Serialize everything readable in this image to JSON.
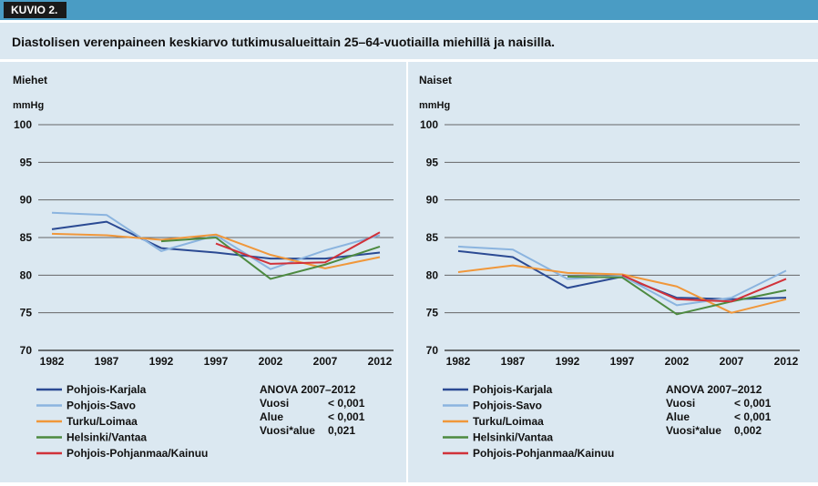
{
  "figure_tag": "KUVIO 2.",
  "figure_title": "Diastolisen verenpaineen keskiarvo tutkimusalueittain 25–64-vuotiailla miehillä ja naisilla.",
  "chart_data": [
    {
      "type": "line",
      "panel_title": "Miehet",
      "ylabel": "mmHg",
      "x": [
        "1982",
        "1987",
        "1992",
        "1997",
        "2002",
        "2007",
        "2012"
      ],
      "ylim": [
        70,
        100
      ],
      "yticks": [
        70,
        75,
        80,
        85,
        90,
        95,
        100
      ],
      "grid": true,
      "legend_position": "bottom-left",
      "series": [
        {
          "name": "Pohjois-Karjala",
          "color": "#2b4a93",
          "values": [
            86.1,
            87.1,
            83.6,
            83.0,
            82.2,
            82.2,
            83.0
          ]
        },
        {
          "name": "Pohjois-Savo",
          "color": "#8bb4df",
          "values": [
            88.3,
            88.0,
            83.2,
            85.3,
            80.8,
            83.3,
            85.3
          ]
        },
        {
          "name": "Turku/Loimaa",
          "color": "#f0973a",
          "values": [
            85.5,
            85.3,
            84.7,
            85.4,
            82.7,
            80.9,
            82.4
          ]
        },
        {
          "name": "Helsinki/Vantaa",
          "color": "#4d8a40",
          "values": [
            null,
            null,
            84.5,
            85.0,
            79.5,
            81.4,
            83.8
          ]
        },
        {
          "name": "Pohjois-Pohjanmaa/Kainuu",
          "color": "#d1323a",
          "values": [
            null,
            null,
            null,
            84.2,
            81.5,
            81.7,
            85.7
          ]
        }
      ],
      "stats": {
        "title": "ANOVA 2007–2012",
        "rows": [
          {
            "label": "Vuosi",
            "value": "< 0,001"
          },
          {
            "label": "Alue",
            "value": "< 0,001"
          },
          {
            "label": "Vuosi*alue",
            "value": "0,021"
          }
        ]
      }
    },
    {
      "type": "line",
      "panel_title": "Naiset",
      "ylabel": "mmHg",
      "x": [
        "1982",
        "1987",
        "1992",
        "1997",
        "2002",
        "2007",
        "2012"
      ],
      "ylim": [
        70,
        100
      ],
      "yticks": [
        70,
        75,
        80,
        85,
        90,
        95,
        100
      ],
      "grid": true,
      "legend_position": "bottom-left",
      "series": [
        {
          "name": "Pohjois-Karjala",
          "color": "#2b4a93",
          "values": [
            83.2,
            82.4,
            78.3,
            79.8,
            77.0,
            76.8,
            77.0
          ]
        },
        {
          "name": "Pohjois-Savo",
          "color": "#8bb4df",
          "values": [
            83.8,
            83.4,
            79.5,
            79.9,
            76.0,
            77.0,
            80.6
          ]
        },
        {
          "name": "Turku/Loimaa",
          "color": "#f0973a",
          "values": [
            80.4,
            81.3,
            80.3,
            80.1,
            78.5,
            75.0,
            76.8
          ]
        },
        {
          "name": "Helsinki/Vantaa",
          "color": "#4d8a40",
          "values": [
            null,
            null,
            79.8,
            79.7,
            74.8,
            76.5,
            78.0
          ]
        },
        {
          "name": "Pohjois-Pohjanmaa/Kainuu",
          "color": "#d1323a",
          "values": [
            null,
            null,
            null,
            80.0,
            76.8,
            76.5,
            79.5
          ]
        }
      ],
      "stats": {
        "title": "ANOVA 2007–2012",
        "rows": [
          {
            "label": "Vuosi",
            "value": "< 0,001"
          },
          {
            "label": "Alue",
            "value": "< 0,001"
          },
          {
            "label": "Vuosi*alue",
            "value": "0,002"
          }
        ]
      }
    }
  ]
}
